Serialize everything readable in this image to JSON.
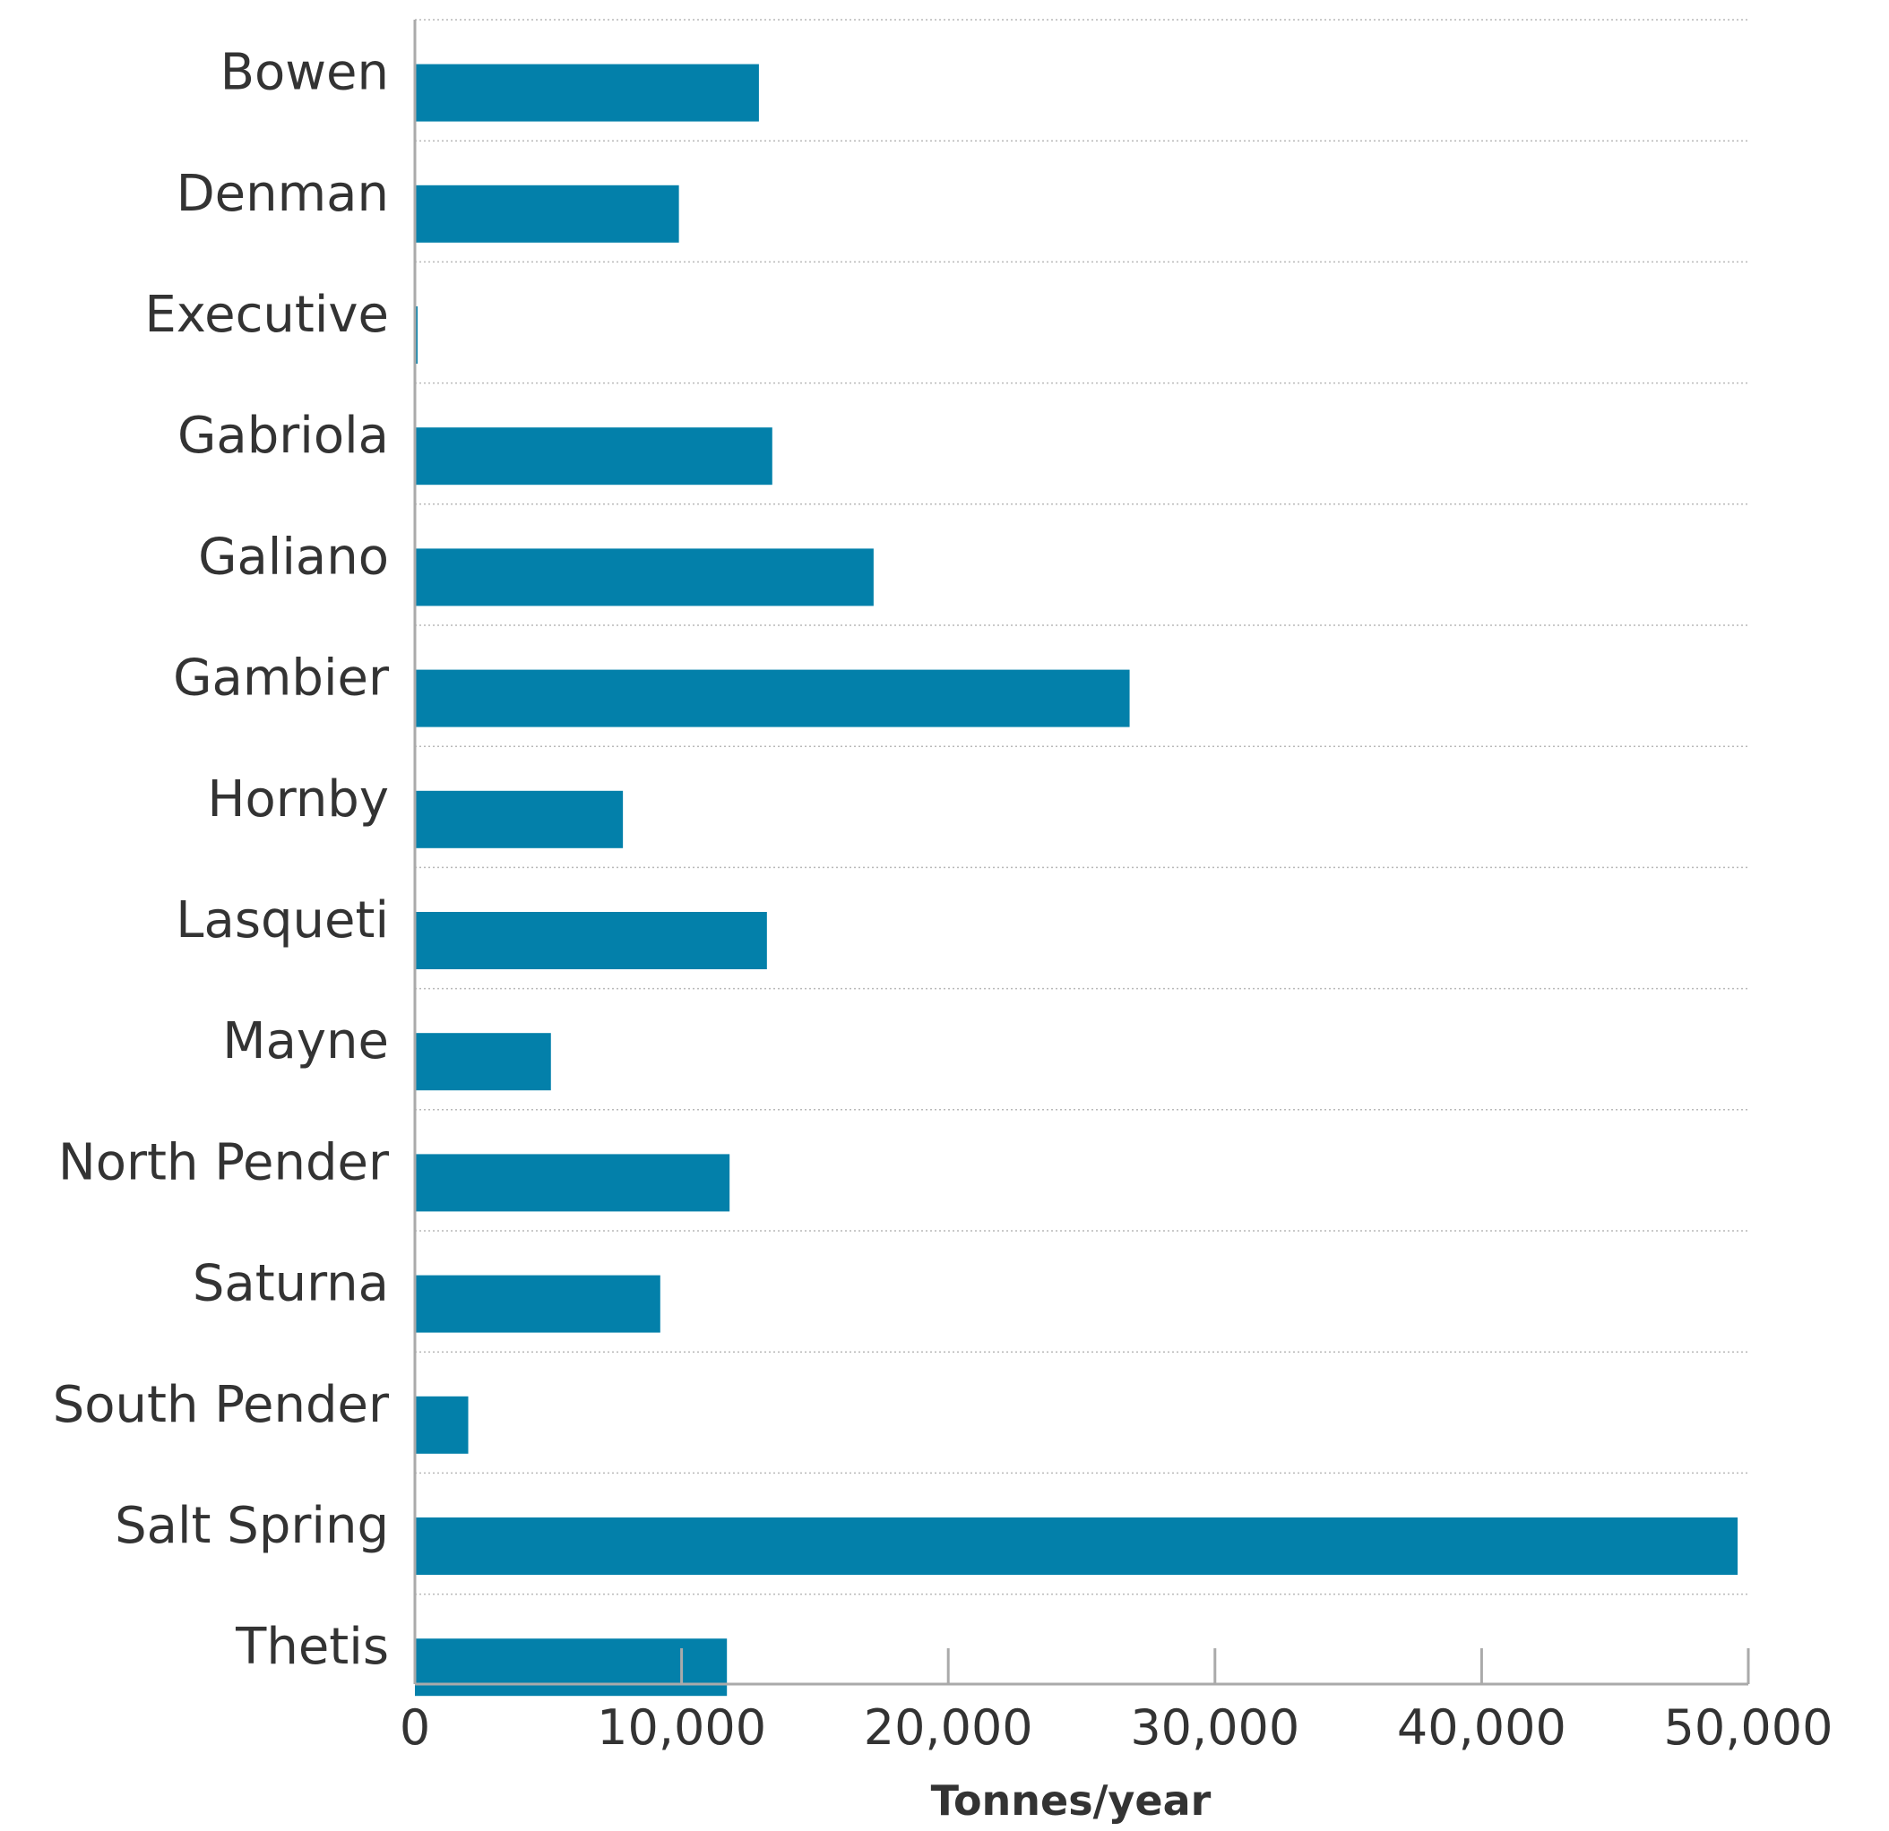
{
  "chart_data": {
    "type": "bar",
    "orientation": "horizontal",
    "categories": [
      "Bowen",
      "Denman",
      "Executive",
      "Gabriola",
      "Galiano",
      "Gambier",
      "Hornby",
      "Lasqueti",
      "Mayne",
      "North Pender",
      "Saturna",
      "South Pender",
      "Salt Spring",
      "Thetis"
    ],
    "values": [
      12900,
      9900,
      100,
      13400,
      17200,
      26800,
      7800,
      13200,
      5100,
      11800,
      9200,
      2000,
      49600,
      11700
    ],
    "xlabel": "Tonnes/year",
    "xlim": [
      0,
      50000
    ],
    "xticks": [
      0,
      10000,
      20000,
      30000,
      40000,
      50000
    ],
    "xtick_labels": [
      "0",
      "10,000",
      "20,000",
      "30,000",
      "40,000",
      "50,000"
    ],
    "bar_color": "#0380aa",
    "grid": "horizontal separators between categories",
    "legend": "none"
  }
}
